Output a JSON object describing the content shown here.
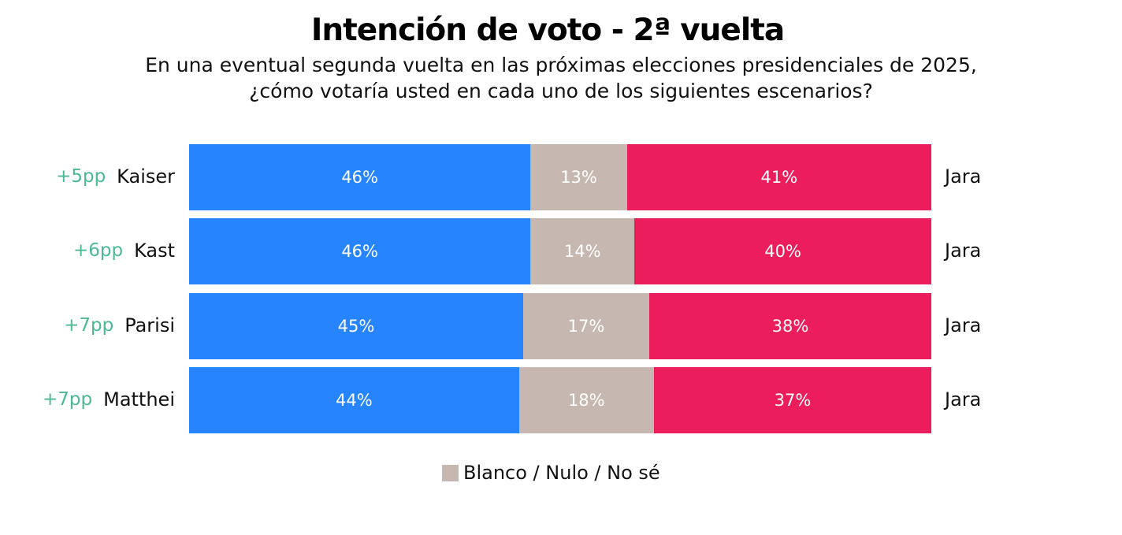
{
  "chart_data": {
    "type": "bar",
    "orientation": "horizontal",
    "stacked": true,
    "title": "Intención de voto - 2ª vuelta",
    "subtitle": [
      "En una eventual segunda vuelta en las próximas elecciones presidenciales de 2025,",
      "¿cómo votaría usted en cada uno de los siguientes escenarios?"
    ],
    "categories": [
      "Kaiser",
      "Kast",
      "Parisi",
      "Matthei"
    ],
    "margins": [
      "+5pp",
      "+6pp",
      "+7pp",
      "+7pp"
    ],
    "opponent": [
      "Jara",
      "Jara",
      "Jara",
      "Jara"
    ],
    "series": [
      {
        "values": [
          46,
          46,
          45,
          44
        ],
        "color": "#2684ff"
      },
      {
        "name": "Blanco / Nulo / No sé",
        "values": [
          13,
          14,
          17,
          18
        ],
        "color": "#c6b8b0"
      },
      {
        "values": [
          41,
          40,
          38,
          37
        ],
        "color": "#ec1d5c"
      }
    ],
    "value_suffix": "%",
    "margin_color": "#4cb894",
    "legend": {
      "label": "Blanco / Nulo / No sé",
      "position": "bottom"
    }
  }
}
